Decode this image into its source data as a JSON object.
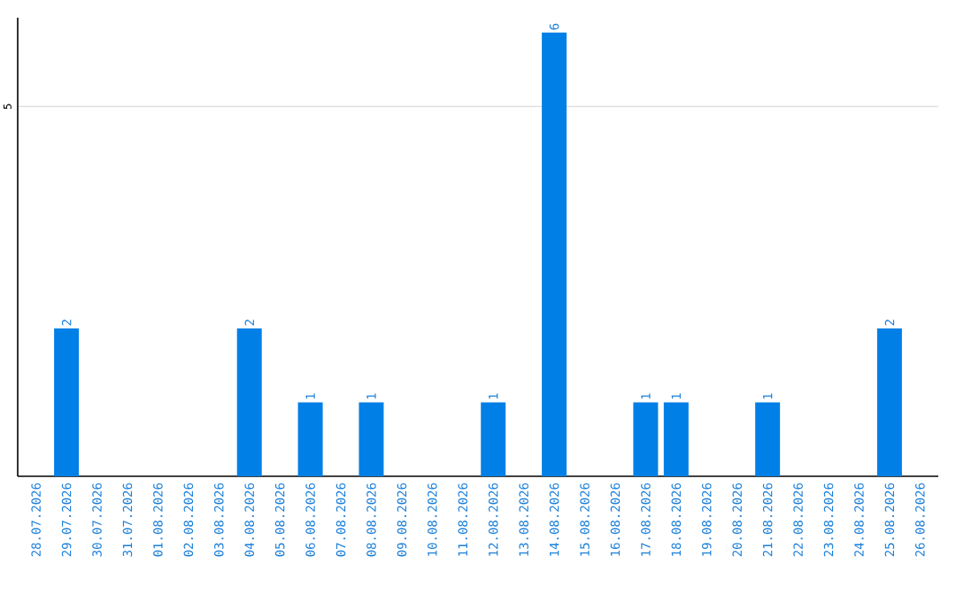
{
  "chart_data": {
    "type": "bar",
    "categories": [
      "28.07.2026",
      "29.07.2026",
      "30.07.2026",
      "31.07.2026",
      "01.08.2026",
      "02.08.2026",
      "03.08.2026",
      "04.08.2026",
      "05.08.2026",
      "06.08.2026",
      "07.08.2026",
      "08.08.2026",
      "09.08.2026",
      "10.08.2026",
      "11.08.2026",
      "12.08.2026",
      "13.08.2026",
      "14.08.2026",
      "15.08.2026",
      "16.08.2026",
      "17.08.2026",
      "18.08.2026",
      "19.08.2026",
      "20.08.2026",
      "21.08.2026",
      "22.08.2026",
      "23.08.2026",
      "24.08.2026",
      "25.08.2026",
      "26.08.2026"
    ],
    "values": [
      0,
      2,
      0,
      0,
      0,
      0,
      0,
      2,
      0,
      1,
      0,
      1,
      0,
      0,
      0,
      1,
      0,
      6,
      0,
      0,
      1,
      1,
      0,
      0,
      1,
      0,
      0,
      0,
      2,
      0
    ],
    "value_labels": [
      null,
      "2",
      null,
      null,
      null,
      null,
      null,
      "2",
      null,
      "1",
      null,
      "1",
      null,
      null,
      null,
      "1",
      null,
      "6",
      null,
      null,
      "1",
      "1",
      null,
      null,
      "1",
      null,
      null,
      null,
      "2",
      null
    ],
    "color": "#0080e6",
    "ylim": [
      0,
      6.2
    ],
    "yticks": [
      5
    ],
    "grid": "y"
  }
}
